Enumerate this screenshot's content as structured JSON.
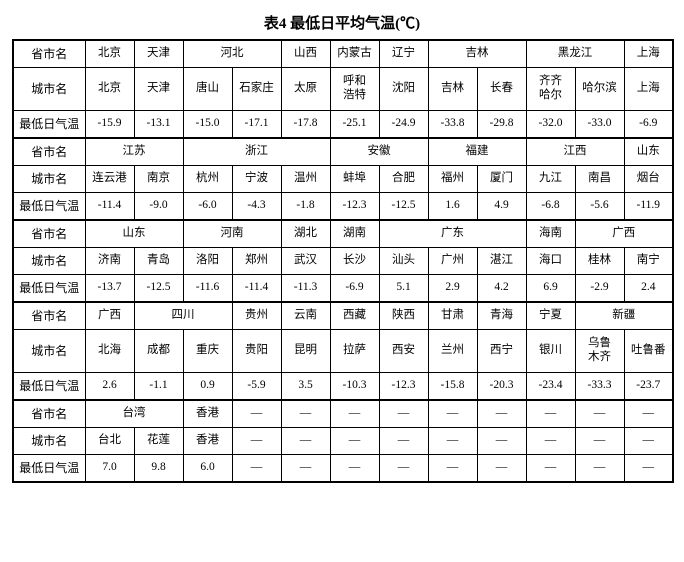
{
  "title": "表4 最低日平均气温(℃)",
  "dash": "—",
  "labels": {
    "province": "省市名",
    "city": "城市名",
    "temp": "最低日气温"
  },
  "block1": {
    "provinces": [
      "北京",
      "天津",
      {
        "name": "河北",
        "span": 2
      },
      "山西",
      "内蒙古",
      "辽宁",
      {
        "name": "吉林",
        "span": 2
      },
      {
        "name": "黑龙江",
        "span": 2
      },
      "上海"
    ],
    "cities": [
      "北京",
      "天津",
      "唐山",
      "石家庄",
      "太原",
      "呼和\n浩特",
      "沈阳",
      "吉林",
      "长春",
      "齐齐\n哈尔",
      "哈尔滨",
      "上海"
    ],
    "temps": [
      "-15.9",
      "-13.1",
      "-15.0",
      "-17.1",
      "-17.8",
      "-25.1",
      "-24.9",
      "-33.8",
      "-29.8",
      "-32.0",
      "-33.0",
      "-6.9"
    ],
    "tall": true
  },
  "block2": {
    "provinces": [
      {
        "name": "江苏",
        "span": 2
      },
      {
        "name": "浙江",
        "span": 3
      },
      {
        "name": "安徽",
        "span": 2
      },
      {
        "name": "福建",
        "span": 2
      },
      {
        "name": "江西",
        "span": 2
      },
      "山东"
    ],
    "cities": [
      "连云港",
      "南京",
      "杭州",
      "宁波",
      "温州",
      "蚌埠",
      "合肥",
      "福州",
      "厦门",
      "九江",
      "南昌",
      "烟台"
    ],
    "temps": [
      "-11.4",
      "-9.0",
      "-6.0",
      "-4.3",
      "-1.8",
      "-12.3",
      "-12.5",
      "1.6",
      "4.9",
      "-6.8",
      "-5.6",
      "-11.9"
    ]
  },
  "block3": {
    "provinces": [
      {
        "name": "山东",
        "span": 2
      },
      {
        "name": "河南",
        "span": 2
      },
      "湖北",
      "湖南",
      {
        "name": "广东",
        "span": 3
      },
      "海南",
      {
        "name": "广西",
        "span": 2
      }
    ],
    "cities": [
      "济南",
      "青岛",
      "洛阳",
      "郑州",
      "武汉",
      "长沙",
      "汕头",
      "广州",
      "湛江",
      "海口",
      "桂林",
      "南宁"
    ],
    "temps": [
      "-13.7",
      "-12.5",
      "-11.6",
      "-11.4",
      "-11.3",
      "-6.9",
      "5.1",
      "2.9",
      "4.2",
      "6.9",
      "-2.9",
      "2.4"
    ]
  },
  "block4": {
    "provinces": [
      "广西",
      {
        "name": "四川",
        "span": 2
      },
      "贵州",
      "云南",
      "西藏",
      "陕西",
      "甘肃",
      "青海",
      "宁夏",
      {
        "name": "新疆",
        "span": 2
      }
    ],
    "cities": [
      "北海",
      "成都",
      "重庆",
      "贵阳",
      "昆明",
      "拉萨",
      "西安",
      "兰州",
      "西宁",
      "银川",
      "乌鲁\n木齐",
      "吐鲁番"
    ],
    "temps": [
      "2.6",
      "-1.1",
      "0.9",
      "-5.9",
      "3.5",
      "-10.3",
      "-12.3",
      "-15.8",
      "-20.3",
      "-23.4",
      "-33.3",
      "-23.7"
    ],
    "tall": true
  },
  "block5": {
    "provinces": [
      {
        "name": "台湾",
        "span": 2
      },
      "香港",
      "—",
      "—",
      "—",
      "—",
      "—",
      "—",
      "—",
      "—",
      "—"
    ],
    "cities": [
      "台北",
      "花莲",
      "香港",
      "—",
      "—",
      "—",
      "—",
      "—",
      "—",
      "—",
      "—",
      "—"
    ],
    "temps": [
      "7.0",
      "9.8",
      "6.0",
      "—",
      "—",
      "—",
      "—",
      "—",
      "—",
      "—",
      "—",
      "—"
    ]
  }
}
